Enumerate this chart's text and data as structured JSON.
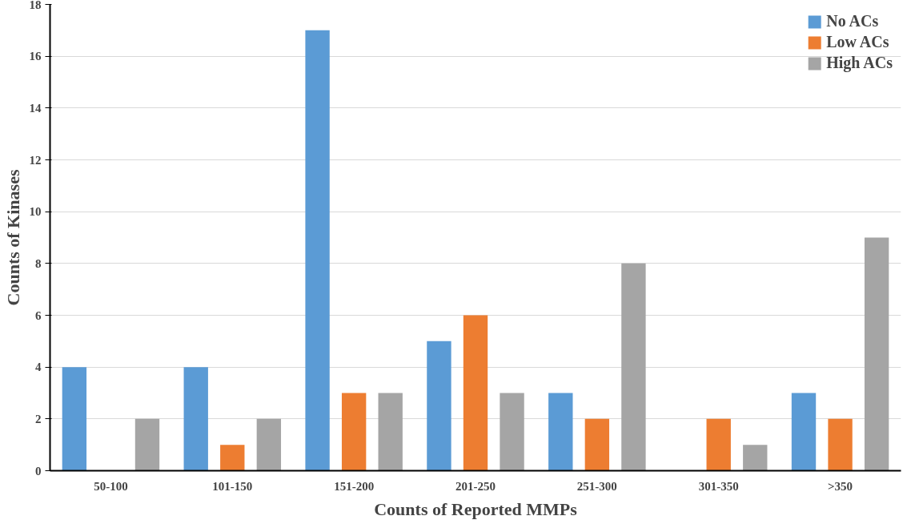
{
  "chart_data": {
    "type": "bar",
    "xlabel": "Counts of Reported MMPs",
    "ylabel": "Counts of Kinases",
    "categories": [
      "50-100",
      "101-150",
      "151-200",
      "201-250",
      "251-300",
      "301-350",
      ">350"
    ],
    "series": [
      {
        "name": "No ACs",
        "color": "#5b9bd5",
        "values": [
          4,
          4,
          17,
          5,
          3,
          0,
          3
        ]
      },
      {
        "name": "Low ACs",
        "color": "#ed7d31",
        "values": [
          0,
          1,
          3,
          6,
          2,
          2,
          2
        ]
      },
      {
        "name": "High ACs",
        "color": "#a5a5a5",
        "values": [
          2,
          2,
          3,
          3,
          8,
          1,
          9
        ]
      }
    ],
    "ylim": [
      0,
      18
    ],
    "yticks": [
      0,
      2,
      4,
      6,
      8,
      10,
      12,
      14,
      16,
      18
    ],
    "grid": "y",
    "legend": "top right"
  }
}
